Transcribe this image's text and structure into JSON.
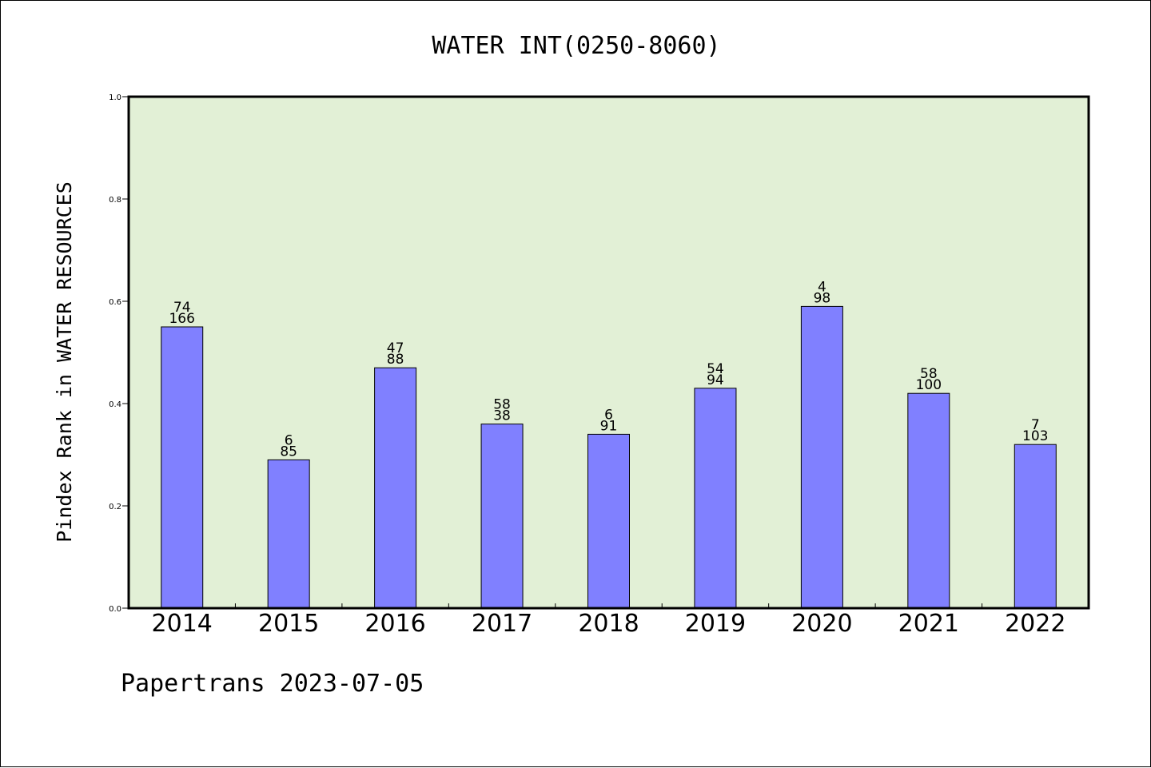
{
  "chart_data": {
    "type": "bar",
    "title": "WATER INT(0250-8060)",
    "xlabel": "",
    "ylabel": "Pindex Rank in WATER RESOURCES",
    "ylim": [
      0.0,
      1.0
    ],
    "yticks": [
      "0.0",
      "0.2",
      "0.4",
      "0.6",
      "0.8",
      "1.0"
    ],
    "categories": [
      "2014",
      "2015",
      "2016",
      "2017",
      "2018",
      "2019",
      "2020",
      "2021",
      "2022"
    ],
    "values": [
      0.55,
      0.29,
      0.47,
      0.36,
      0.34,
      0.43,
      0.59,
      0.42,
      0.32
    ],
    "label_top": [
      "74",
      "6",
      "47",
      "58",
      "6",
      "54",
      "4",
      "58",
      "7"
    ],
    "label_bottom": [
      "166",
      "85",
      "88",
      "38",
      "91",
      "94",
      "98",
      "100",
      "103"
    ],
    "grid": false,
    "legend": "none",
    "colors": {
      "bar": "#8080ff",
      "plot_background": "#e2f0d6",
      "axis": "#000000"
    }
  },
  "footer": {
    "credit": "Papertrans 2023-07-05"
  }
}
